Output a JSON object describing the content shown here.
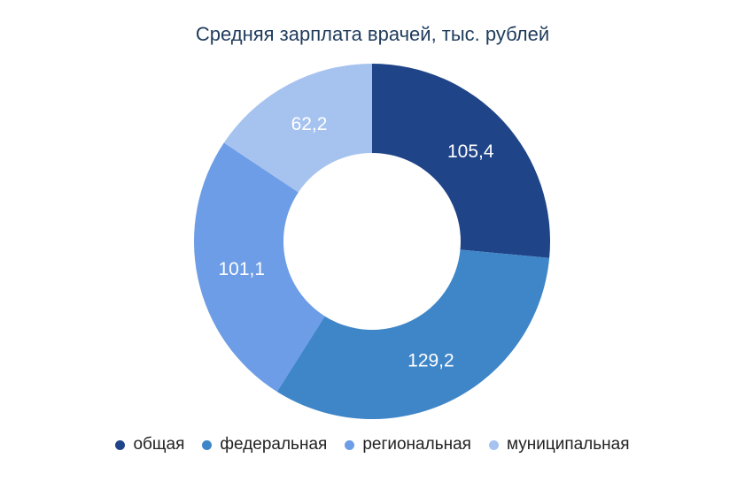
{
  "chart_data": {
    "type": "pie",
    "title": "Средняя зарплата врачей, тыс. рублей",
    "categories": [
      "общая",
      "федеральная",
      "региональная",
      "муниципальная"
    ],
    "values": [
      105.4,
      129.2,
      101.1,
      62.2
    ],
    "value_labels": [
      "105,4",
      "129,2",
      "101,1",
      "62,2"
    ],
    "colors": [
      "#1f4488",
      "#3f86c8",
      "#6d9de6",
      "#a6c3f0"
    ],
    "donut": true,
    "legend_position": "bottom"
  }
}
